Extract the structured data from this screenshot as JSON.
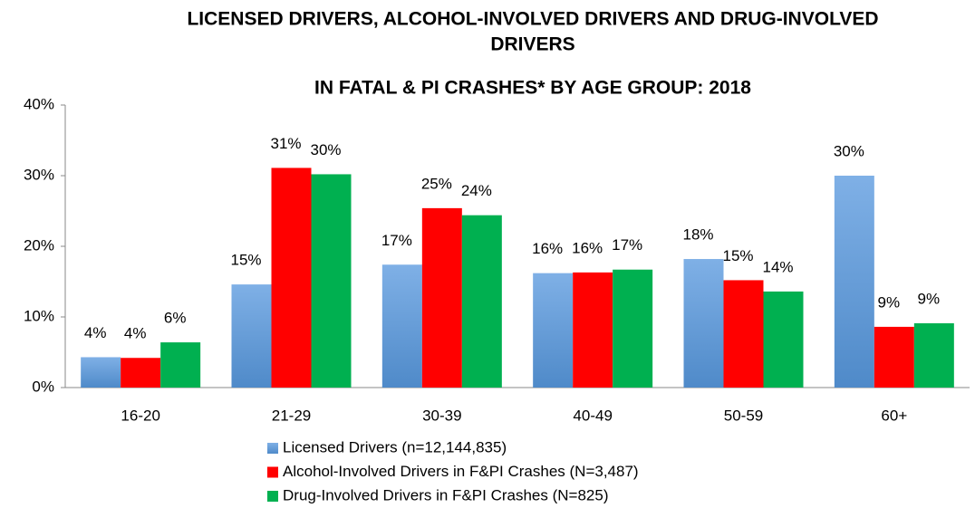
{
  "chart_data": {
    "type": "bar",
    "title": [
      "LICENSED DRIVERS, ALCOHOL-INVOLVED DRIVERS AND DRUG-INVOLVED",
      "DRIVERS",
      "IN FATAL & PI CRASHES* BY AGE GROUP:  2018"
    ],
    "categories": [
      "16-20",
      "21-29",
      "30-39",
      "40-49",
      "50-59",
      "60+"
    ],
    "series": [
      {
        "name": "Licensed Drivers (n=12,144,835)",
        "color": "#6a9fd8",
        "values": [
          4.3,
          14.6,
          17.4,
          16.2,
          18.2,
          30.0
        ],
        "value_labels": [
          "4%",
          "15%",
          "17%",
          "16%",
          "18%",
          "30%"
        ]
      },
      {
        "name": "Alcohol-Involved Drivers in F&PI Crashes (N=3,487)",
        "color": "#ff0000",
        "values": [
          4.2,
          31.1,
          25.4,
          16.3,
          15.2,
          8.6
        ],
        "value_labels": [
          "4%",
          "31%",
          "25%",
          "16%",
          "15%",
          "9%"
        ]
      },
      {
        "name": "Drug-Involved Drivers in F&PI Crashes (N=825)",
        "color": "#00b050",
        "values": [
          6.4,
          30.2,
          24.4,
          16.7,
          13.6,
          9.1
        ],
        "value_labels": [
          "6%",
          "30%",
          "24%",
          "17%",
          "14%",
          "9%"
        ]
      }
    ],
    "ylim": [
      0,
      40
    ],
    "yticks": [
      {
        "value": 0,
        "label": "0%"
      },
      {
        "value": 10,
        "label": "10%"
      },
      {
        "value": 20,
        "label": "20%"
      },
      {
        "value": 30,
        "label": "30%"
      },
      {
        "value": 40,
        "label": "40%"
      }
    ],
    "grid": false,
    "legend": "bottom"
  }
}
